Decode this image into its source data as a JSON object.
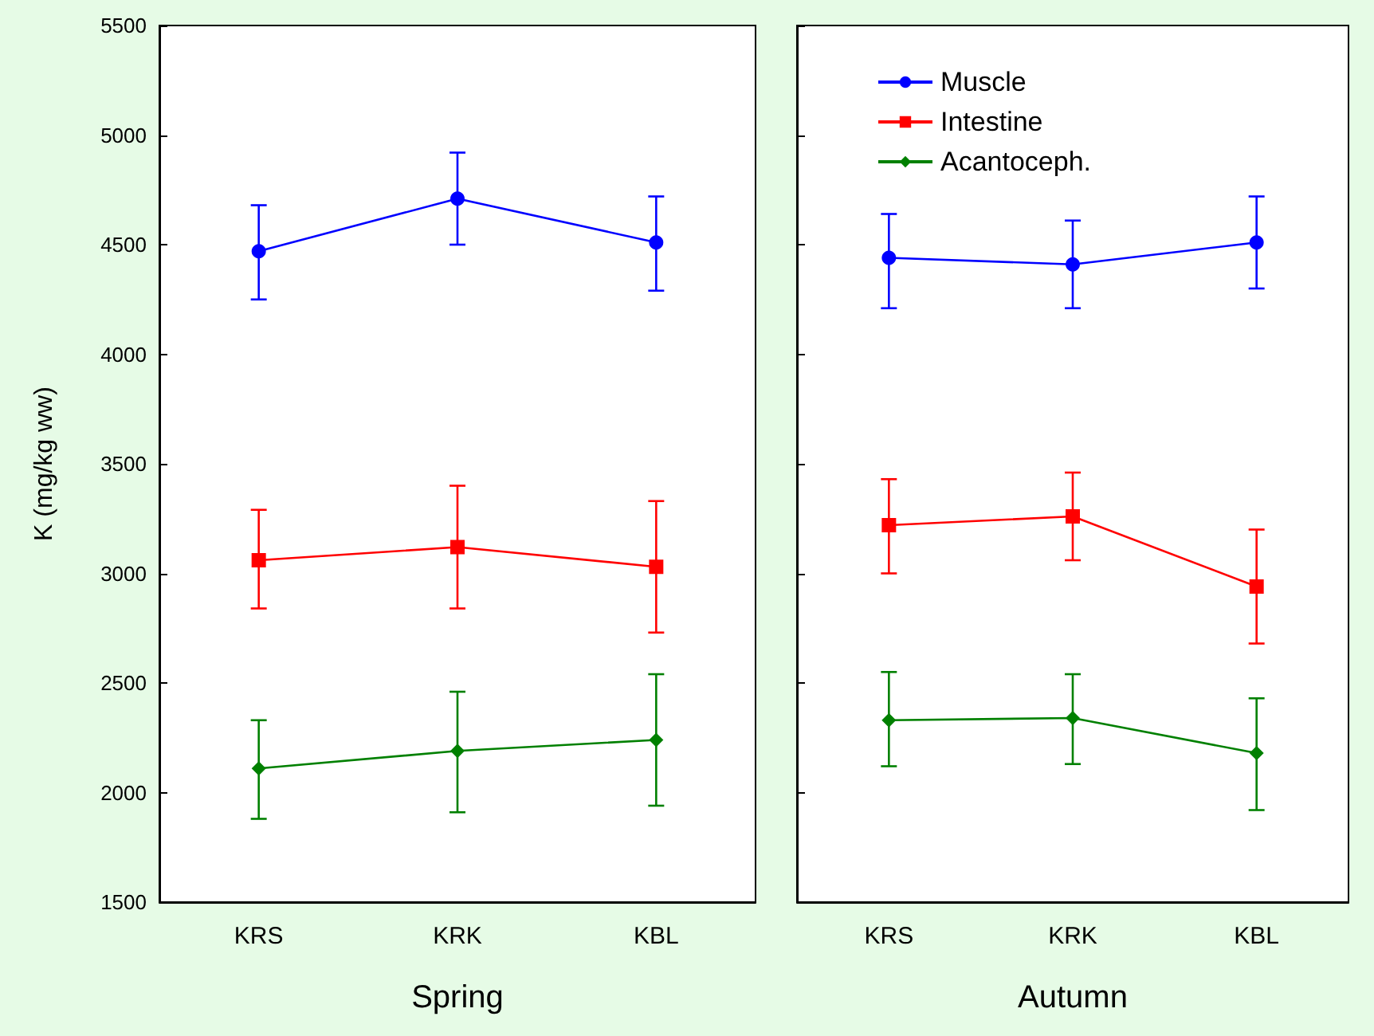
{
  "chart_data": [
    {
      "type": "line",
      "xlabel": "Spring",
      "ylabel": "K (mg/kg ww)",
      "categories": [
        "KRS",
        "KRK",
        "KBL"
      ],
      "ylim": [
        1500,
        5500
      ],
      "yticks": [
        1500,
        2000,
        2500,
        3000,
        3500,
        4000,
        4500,
        5000,
        5500
      ],
      "grid": false,
      "legend": false,
      "series": [
        {
          "color": "#0000ff",
          "marker": "circle",
          "values": [
            4470,
            4710,
            4510
          ],
          "errors": [
            [
              4250,
              4680
            ],
            [
              4500,
              4920
            ],
            [
              4290,
              4720
            ]
          ]
        },
        {
          "color": "#ff0000",
          "marker": "square",
          "values": [
            3060,
            3120,
            3030
          ],
          "errors": [
            [
              2840,
              3290
            ],
            [
              2840,
              3400
            ],
            [
              2730,
              3330
            ]
          ]
        },
        {
          "color": "#008000",
          "marker": "diamond",
          "values": [
            2110,
            2190,
            2240
          ],
          "errors": [
            [
              1880,
              2330
            ],
            [
              1910,
              2460
            ],
            [
              1940,
              2540
            ]
          ]
        }
      ]
    },
    {
      "type": "line",
      "xlabel": "Autumn",
      "categories": [
        "KRS",
        "KRK",
        "KBL"
      ],
      "ylim": [
        1500,
        5500
      ],
      "yticks": [
        1500,
        2000,
        2500,
        3000,
        3500,
        4000,
        4500,
        5000,
        5500
      ],
      "grid": false,
      "legend": "top left",
      "tick_labels": "x",
      "series": [
        {
          "name": "Muscle",
          "color": "#0000ff",
          "marker": "circle",
          "values": [
            4440,
            4410,
            4510
          ],
          "errors": [
            [
              4210,
              4640
            ],
            [
              4210,
              4610
            ],
            [
              4300,
              4720
            ]
          ]
        },
        {
          "name": "Intestine",
          "color": "#ff0000",
          "marker": "square",
          "values": [
            3220,
            3260,
            2940
          ],
          "errors": [
            [
              3000,
              3430
            ],
            [
              3060,
              3460
            ],
            [
              2680,
              3200
            ]
          ]
        },
        {
          "name": "Acantoceph.",
          "color": "#008000",
          "marker": "diamond",
          "values": [
            2330,
            2340,
            2180
          ],
          "errors": [
            [
              2120,
              2550
            ],
            [
              2130,
              2540
            ],
            [
              1920,
              2430
            ]
          ]
        }
      ]
    }
  ]
}
